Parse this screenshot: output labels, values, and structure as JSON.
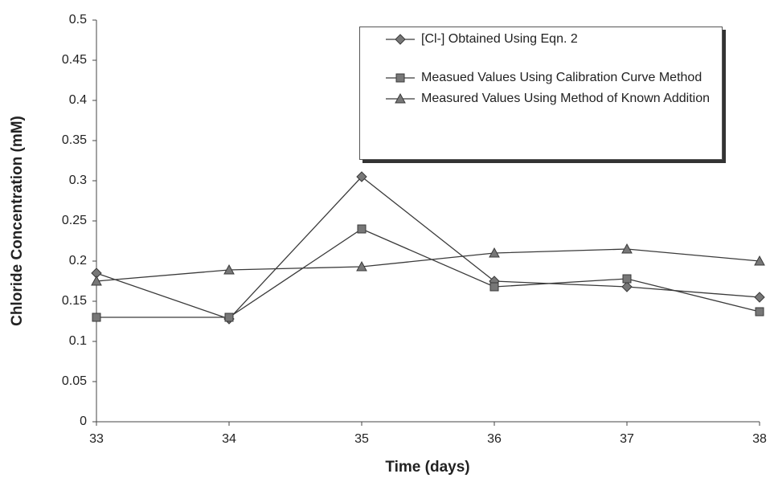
{
  "chart_data": {
    "type": "line",
    "x_label": "Time (days)",
    "y_label": "Chloride Concentration (mM)",
    "x": [
      33,
      34,
      35,
      36,
      37,
      38
    ],
    "xlim": [
      33,
      38
    ],
    "xticks": [
      33,
      34,
      35,
      36,
      37,
      38
    ],
    "ylim": [
      0,
      0.5
    ],
    "yticks": [
      0,
      0.05,
      0.1,
      0.15,
      0.2,
      0.25,
      0.3,
      0.35,
      0.4,
      0.45,
      0.5
    ],
    "legend": "top-right",
    "series": [
      {
        "name": "[Cl-] Obtained Using Eqn. 2",
        "color": "#3a3a3a",
        "marker": "diamond",
        "values": [
          0.185,
          0.128,
          0.305,
          0.175,
          0.168,
          0.155
        ]
      },
      {
        "name": "Measued Values Using Calibration Curve Method",
        "color": "#3a3a3a",
        "marker": "square",
        "values": [
          0.13,
          0.13,
          0.24,
          0.168,
          0.178,
          0.137
        ]
      },
      {
        "name": "Measured Values Using Method of Known Addition",
        "color": "#3a3a3a",
        "marker": "triangle",
        "values": [
          0.175,
          0.189,
          0.193,
          0.21,
          0.215,
          0.2
        ]
      }
    ]
  }
}
